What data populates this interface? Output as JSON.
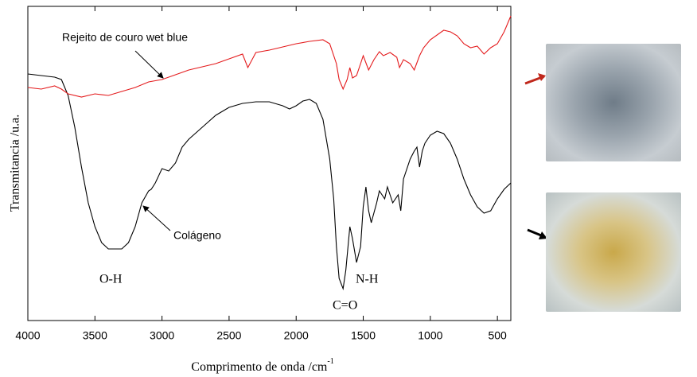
{
  "chart_data": {
    "type": "line",
    "xlabel": "Comprimento de onda /cm",
    "xlabel_sup": "-1",
    "ylabel": "Transmitancia /u.a.",
    "xlim": [
      4000,
      400
    ],
    "ylim": [
      0,
      395
    ],
    "xticks": [
      4000,
      3500,
      3000,
      2500,
      2000,
      1500,
      1000,
      500
    ],
    "annotations": [
      "Rejeito de couro wet blue",
      "Colágeno",
      "O-H",
      "N-H",
      "C=O"
    ],
    "series": [
      {
        "color": "#000000",
        "x": [
          4000,
          3800,
          3750,
          3700,
          3650,
          3600,
          3550,
          3500,
          3450,
          3400,
          3300,
          3250,
          3200,
          3150,
          3100,
          3080,
          3050,
          3000,
          2950,
          2900,
          2850,
          2800,
          2700,
          2600,
          2500,
          2400,
          2300,
          2200,
          2100,
          2050,
          2000,
          1950,
          1900,
          1850,
          1800,
          1750,
          1720,
          1700,
          1680,
          1650,
          1630,
          1600,
          1580,
          1550,
          1520,
          1500,
          1480,
          1460,
          1440,
          1400,
          1380,
          1340,
          1320,
          1280,
          1240,
          1220,
          1200,
          1150,
          1120,
          1100,
          1080,
          1060,
          1040,
          1000,
          950,
          900,
          850,
          800,
          750,
          700,
          650,
          600,
          550,
          500,
          450,
          400
        ],
        "values": [
          310,
          306,
          303,
          283,
          243,
          193,
          148,
          118,
          98,
          90,
          90,
          98,
          118,
          148,
          163,
          165,
          173,
          191,
          188,
          198,
          218,
          228,
          243,
          258,
          268,
          273,
          275,
          275,
          270,
          266,
          270,
          276,
          278,
          273,
          253,
          203,
          153,
          93,
          53,
          40,
          63,
          118,
          103,
          73,
          93,
          143,
          168,
          138,
          123,
          148,
          163,
          153,
          168,
          148,
          158,
          138,
          178,
          203,
          213,
          218,
          193,
          213,
          223,
          233,
          238,
          235,
          223,
          203,
          178,
          158,
          143,
          135,
          138,
          153,
          165,
          173
        ]
      },
      {
        "color": "#e41a1c",
        "x": [
          4000,
          3900,
          3800,
          3750,
          3700,
          3600,
          3500,
          3400,
          3300,
          3200,
          3100,
          3000,
          2900,
          2800,
          2700,
          2600,
          2500,
          2400,
          2360,
          2300,
          2200,
          2100,
          2000,
          1900,
          1800,
          1750,
          1700,
          1680,
          1650,
          1620,
          1600,
          1580,
          1550,
          1520,
          1500,
          1460,
          1420,
          1380,
          1350,
          1300,
          1250,
          1230,
          1200,
          1150,
          1120,
          1080,
          1050,
          1000,
          900,
          850,
          800,
          750,
          700,
          650,
          600,
          550,
          500,
          450,
          400
        ],
        "values": [
          293,
          291,
          295,
          291,
          285,
          281,
          285,
          283,
          288,
          293,
          300,
          303,
          309,
          315,
          319,
          323,
          329,
          335,
          318,
          337,
          340,
          344,
          348,
          351,
          353,
          348,
          323,
          303,
          291,
          303,
          318,
          305,
          308,
          323,
          333,
          315,
          328,
          338,
          333,
          337,
          331,
          318,
          328,
          323,
          315,
          333,
          343,
          353,
          365,
          363,
          358,
          348,
          343,
          345,
          335,
          343,
          348,
          363,
          383
        ]
      }
    ]
  }
}
